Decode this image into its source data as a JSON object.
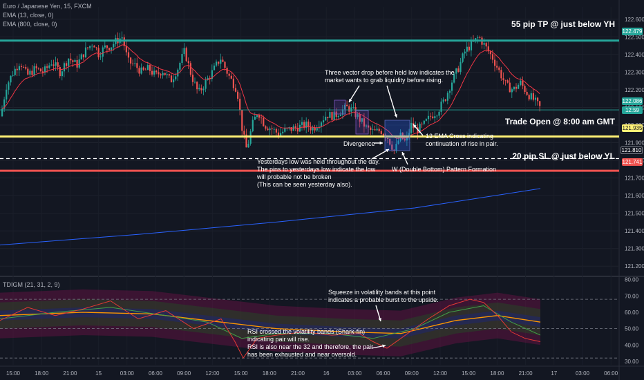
{
  "header": {
    "symbol": "Euro / Japanese Yen, 15, FXCM",
    "ema1": "EMA (13, close, 0)",
    "ema2": "EMA (800, close, 0)",
    "indicator": "TDIGM (21, 31, 2, 9)"
  },
  "levels": {
    "tp_label": "55 pip TP @ just below YH",
    "open_label": "Trade Open @ 8:00 am GMT",
    "sl_label": "20 pip SL @ just below YL"
  },
  "annotations": {
    "vector_drop": "Three vector drop before held low indicates the\nmarket wants to grab liquidity before rising.",
    "ema_cross": "13 EMA Cross indicating\ncontinuation of rise in pair.",
    "divergence": "Divergence",
    "yesterday_low": "Yesterdays low was held throughout the day.\nThe pins to yesterdays low indicate the low\nwill probable not be broken\n(This can be seen yesterday also).",
    "w_pattern": "W (Double Bottom) Pattern Formation",
    "squeeze": "Squeeze in volatility bands at this point\nindicates a probable burst to the upside.",
    "rsi_note": "RSI crossed the volatility bands (Shark-fin)\nindicating pair will rise.\nRSI is also near the 32 and therefore, the pair\nhas been exhausted and near oversold."
  },
  "price_tags": {
    "tp": "122.479",
    "current": "122.086",
    "countdown": "12:59",
    "open": "121.935",
    "dashed": "121.810",
    "sl": "121.741"
  },
  "colors": {
    "tp_line": "#26a69a",
    "open_line": "#fff176",
    "sl_line": "#ef5350",
    "bull": "#26a69a",
    "bear": "#ef5350",
    "ema13": "#f23645",
    "ema800": "#2962ff"
  },
  "chart_data": [
    {
      "type": "candlestick",
      "title": "Euro / Japanese Yen, 15, FXCM",
      "ylim": [
        121.15,
        122.67
      ],
      "y_ticks": [
        122.6,
        122.5,
        122.4,
        122.3,
        122.2,
        122.1,
        122.0,
        121.9,
        121.8,
        121.7,
        121.6,
        121.5,
        121.4,
        121.3,
        121.2
      ],
      "x_ticks": [
        "15:00",
        "18:00",
        "21:00",
        "15",
        "03:00",
        "06:00",
        "09:00",
        "12:00",
        "15:00",
        "18:00",
        "21:00",
        "16",
        "03:00",
        "06:00",
        "09:00",
        "12:00",
        "15:00",
        "18:00",
        "21:00",
        "17",
        "03:00",
        "06:00"
      ],
      "price_path": [
        [
          0,
          122.05
        ],
        [
          8,
          122.22
        ],
        [
          18,
          122.3
        ],
        [
          28,
          122.36
        ],
        [
          38,
          122.28
        ],
        [
          50,
          122.32
        ],
        [
          62,
          122.3
        ],
        [
          74,
          122.36
        ],
        [
          86,
          122.3
        ],
        [
          98,
          122.38
        ],
        [
          110,
          122.34
        ],
        [
          122,
          122.42
        ],
        [
          134,
          122.47
        ],
        [
          142,
          122.4
        ],
        [
          150,
          122.44
        ],
        [
          160,
          122.45
        ],
        [
          168,
          122.48
        ],
        [
          176,
          122.5
        ],
        [
          184,
          122.36
        ],
        [
          194,
          122.34
        ],
        [
          204,
          122.3
        ],
        [
          214,
          122.32
        ],
        [
          224,
          122.28
        ],
        [
          234,
          122.31
        ],
        [
          246,
          122.25
        ],
        [
          256,
          122.32
        ],
        [
          266,
          122.42
        ],
        [
          276,
          122.28
        ],
        [
          286,
          122.18
        ],
        [
          296,
          122.24
        ],
        [
          306,
          122.3
        ],
        [
          318,
          122.38
        ],
        [
          330,
          122.28
        ],
        [
          342,
          122.2
        ],
        [
          350,
          121.96
        ],
        [
          356,
          121.86
        ],
        [
          364,
          122.0
        ],
        [
          372,
          122.08
        ],
        [
          382,
          122.0
        ],
        [
          392,
          121.98
        ],
        [
          402,
          121.95
        ],
        [
          412,
          121.97
        ],
        [
          422,
          121.98
        ],
        [
          432,
          121.99
        ],
        [
          442,
          122.0
        ],
        [
          452,
          121.98
        ],
        [
          462,
          122.02
        ],
        [
          472,
          122.06
        ],
        [
          482,
          122.05
        ],
        [
          492,
          122.08
        ],
        [
          502,
          122.1
        ],
        [
          510,
          122.08
        ],
        [
          520,
          122.03
        ],
        [
          530,
          121.98
        ],
        [
          540,
          121.96
        ],
        [
          550,
          121.97
        ],
        [
          560,
          121.93
        ],
        [
          570,
          121.85
        ],
        [
          578,
          121.94
        ],
        [
          586,
          121.9
        ],
        [
          594,
          122.0
        ],
        [
          602,
          121.97
        ],
        [
          612,
          122.0
        ],
        [
          622,
          122.05
        ],
        [
          632,
          122.08
        ],
        [
          642,
          122.14
        ],
        [
          652,
          122.24
        ],
        [
          662,
          122.32
        ],
        [
          672,
          122.42
        ],
        [
          682,
          122.46
        ],
        [
          692,
          122.5
        ],
        [
          702,
          122.44
        ],
        [
          712,
          122.38
        ],
        [
          722,
          122.3
        ],
        [
          732,
          122.22
        ],
        [
          742,
          122.2
        ],
        [
          752,
          122.24
        ],
        [
          762,
          122.18
        ],
        [
          772,
          122.14
        ],
        [
          782,
          122.09
        ]
      ],
      "series": [
        {
          "name": "EMA (13, close, 0)",
          "style": "smoothed price"
        },
        {
          "name": "EMA (800, close, 0)",
          "values_x_y": [
            [
              0,
              121.32
            ],
            [
              200,
              121.38
            ],
            [
              400,
              121.45
            ],
            [
              600,
              121.53
            ],
            [
              782,
              121.64
            ]
          ]
        }
      ],
      "horizontal_levels": [
        {
          "label": "55 pip TP @ just below YH",
          "value": 122.479
        },
        {
          "label": "Trade Open @ 8:00 am GMT",
          "value": 121.935
        },
        {
          "value": 121.81,
          "style": "dashed"
        },
        {
          "label": "20 pip SL @ just below YL",
          "value": 121.741
        }
      ],
      "current_price": 122.086
    },
    {
      "type": "line",
      "title": "TDIGM (21, 31, 2, 9)",
      "ylim": [
        27,
        82
      ],
      "y_ticks": [
        80,
        70,
        60,
        50,
        40,
        30
      ],
      "reference_lines": [
        68,
        50,
        32
      ],
      "series": [
        {
          "name": "RSI",
          "values_x_y": [
            [
              0,
              55
            ],
            [
              40,
              63
            ],
            [
              80,
              58
            ],
            [
              120,
              62
            ],
            [
              160,
              67
            ],
            [
              200,
              56
            ],
            [
              240,
              61
            ],
            [
              280,
              50
            ],
            [
              320,
              56
            ],
            [
              340,
              42
            ],
            [
              352,
              32
            ],
            [
              372,
              44
            ],
            [
              400,
              46
            ],
            [
              440,
              48
            ],
            [
              480,
              46
            ],
            [
              520,
              47
            ],
            [
              540,
              42
            ],
            [
              560,
              38
            ],
            [
              580,
              44
            ],
            [
              600,
              50
            ],
            [
              620,
              56
            ],
            [
              650,
              64
            ],
            [
              680,
              68
            ],
            [
              700,
              66
            ],
            [
              720,
              58
            ],
            [
              740,
              48
            ],
            [
              760,
              44
            ],
            [
              782,
              42
            ]
          ]
        },
        {
          "name": "Signal",
          "values_x_y": [
            [
              0,
              56
            ],
            [
              80,
              60
            ],
            [
              160,
              63
            ],
            [
              240,
              58
            ],
            [
              300,
              54
            ],
            [
              350,
              44
            ],
            [
              400,
              47
            ],
            [
              480,
              47
            ],
            [
              540,
              44
            ],
            [
              600,
              50
            ],
            [
              650,
              60
            ],
            [
              700,
              64
            ],
            [
              740,
              54
            ],
            [
              782,
              46
            ]
          ]
        },
        {
          "name": "Base",
          "values_x_y": [
            [
              0,
              58
            ],
            [
              120,
              60
            ],
            [
              220,
              59
            ],
            [
              320,
              54
            ],
            [
              400,
              50
            ],
            [
              500,
              48
            ],
            [
              580,
              47
            ],
            [
              660,
              55
            ],
            [
              720,
              58
            ],
            [
              782,
              54
            ]
          ]
        }
      ]
    }
  ]
}
